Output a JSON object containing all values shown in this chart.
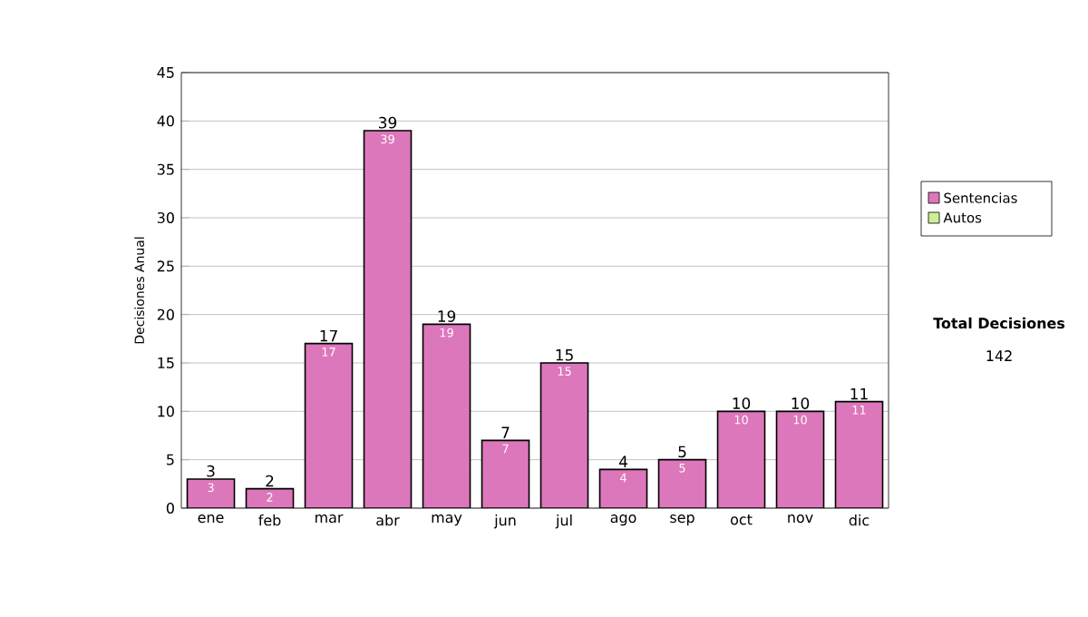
{
  "chart_data": {
    "type": "bar",
    "stacked": true,
    "ylabel": "Decisiones Anual",
    "categories": [
      "ene",
      "feb",
      "mar",
      "abr",
      "may",
      "jun",
      "jul",
      "ago",
      "sep",
      "oct",
      "nov",
      "dic"
    ],
    "series": [
      {
        "name": "Sentencias",
        "color": "#dd77bb",
        "values": [
          3,
          2,
          17,
          39,
          19,
          7,
          15,
          4,
          5,
          10,
          10,
          11
        ]
      },
      {
        "name": "Autos",
        "color": "#ccee99",
        "values": [
          null,
          null,
          null,
          null,
          null,
          null,
          null,
          null,
          null,
          null,
          null,
          null
        ]
      }
    ],
    "totals": [
      "3",
      "2",
      "17",
      "39",
      "19",
      "7",
      "15",
      "4",
      "5",
      "10",
      "10",
      "11"
    ],
    "data_labels": true,
    "ylim": [
      0,
      45
    ],
    "yticks": [
      0,
      5,
      10,
      15,
      20,
      25,
      30,
      35,
      40,
      45
    ],
    "grid": "y",
    "legend": "right",
    "annotations": [
      "**Total Decisiones**",
      "142"
    ]
  }
}
